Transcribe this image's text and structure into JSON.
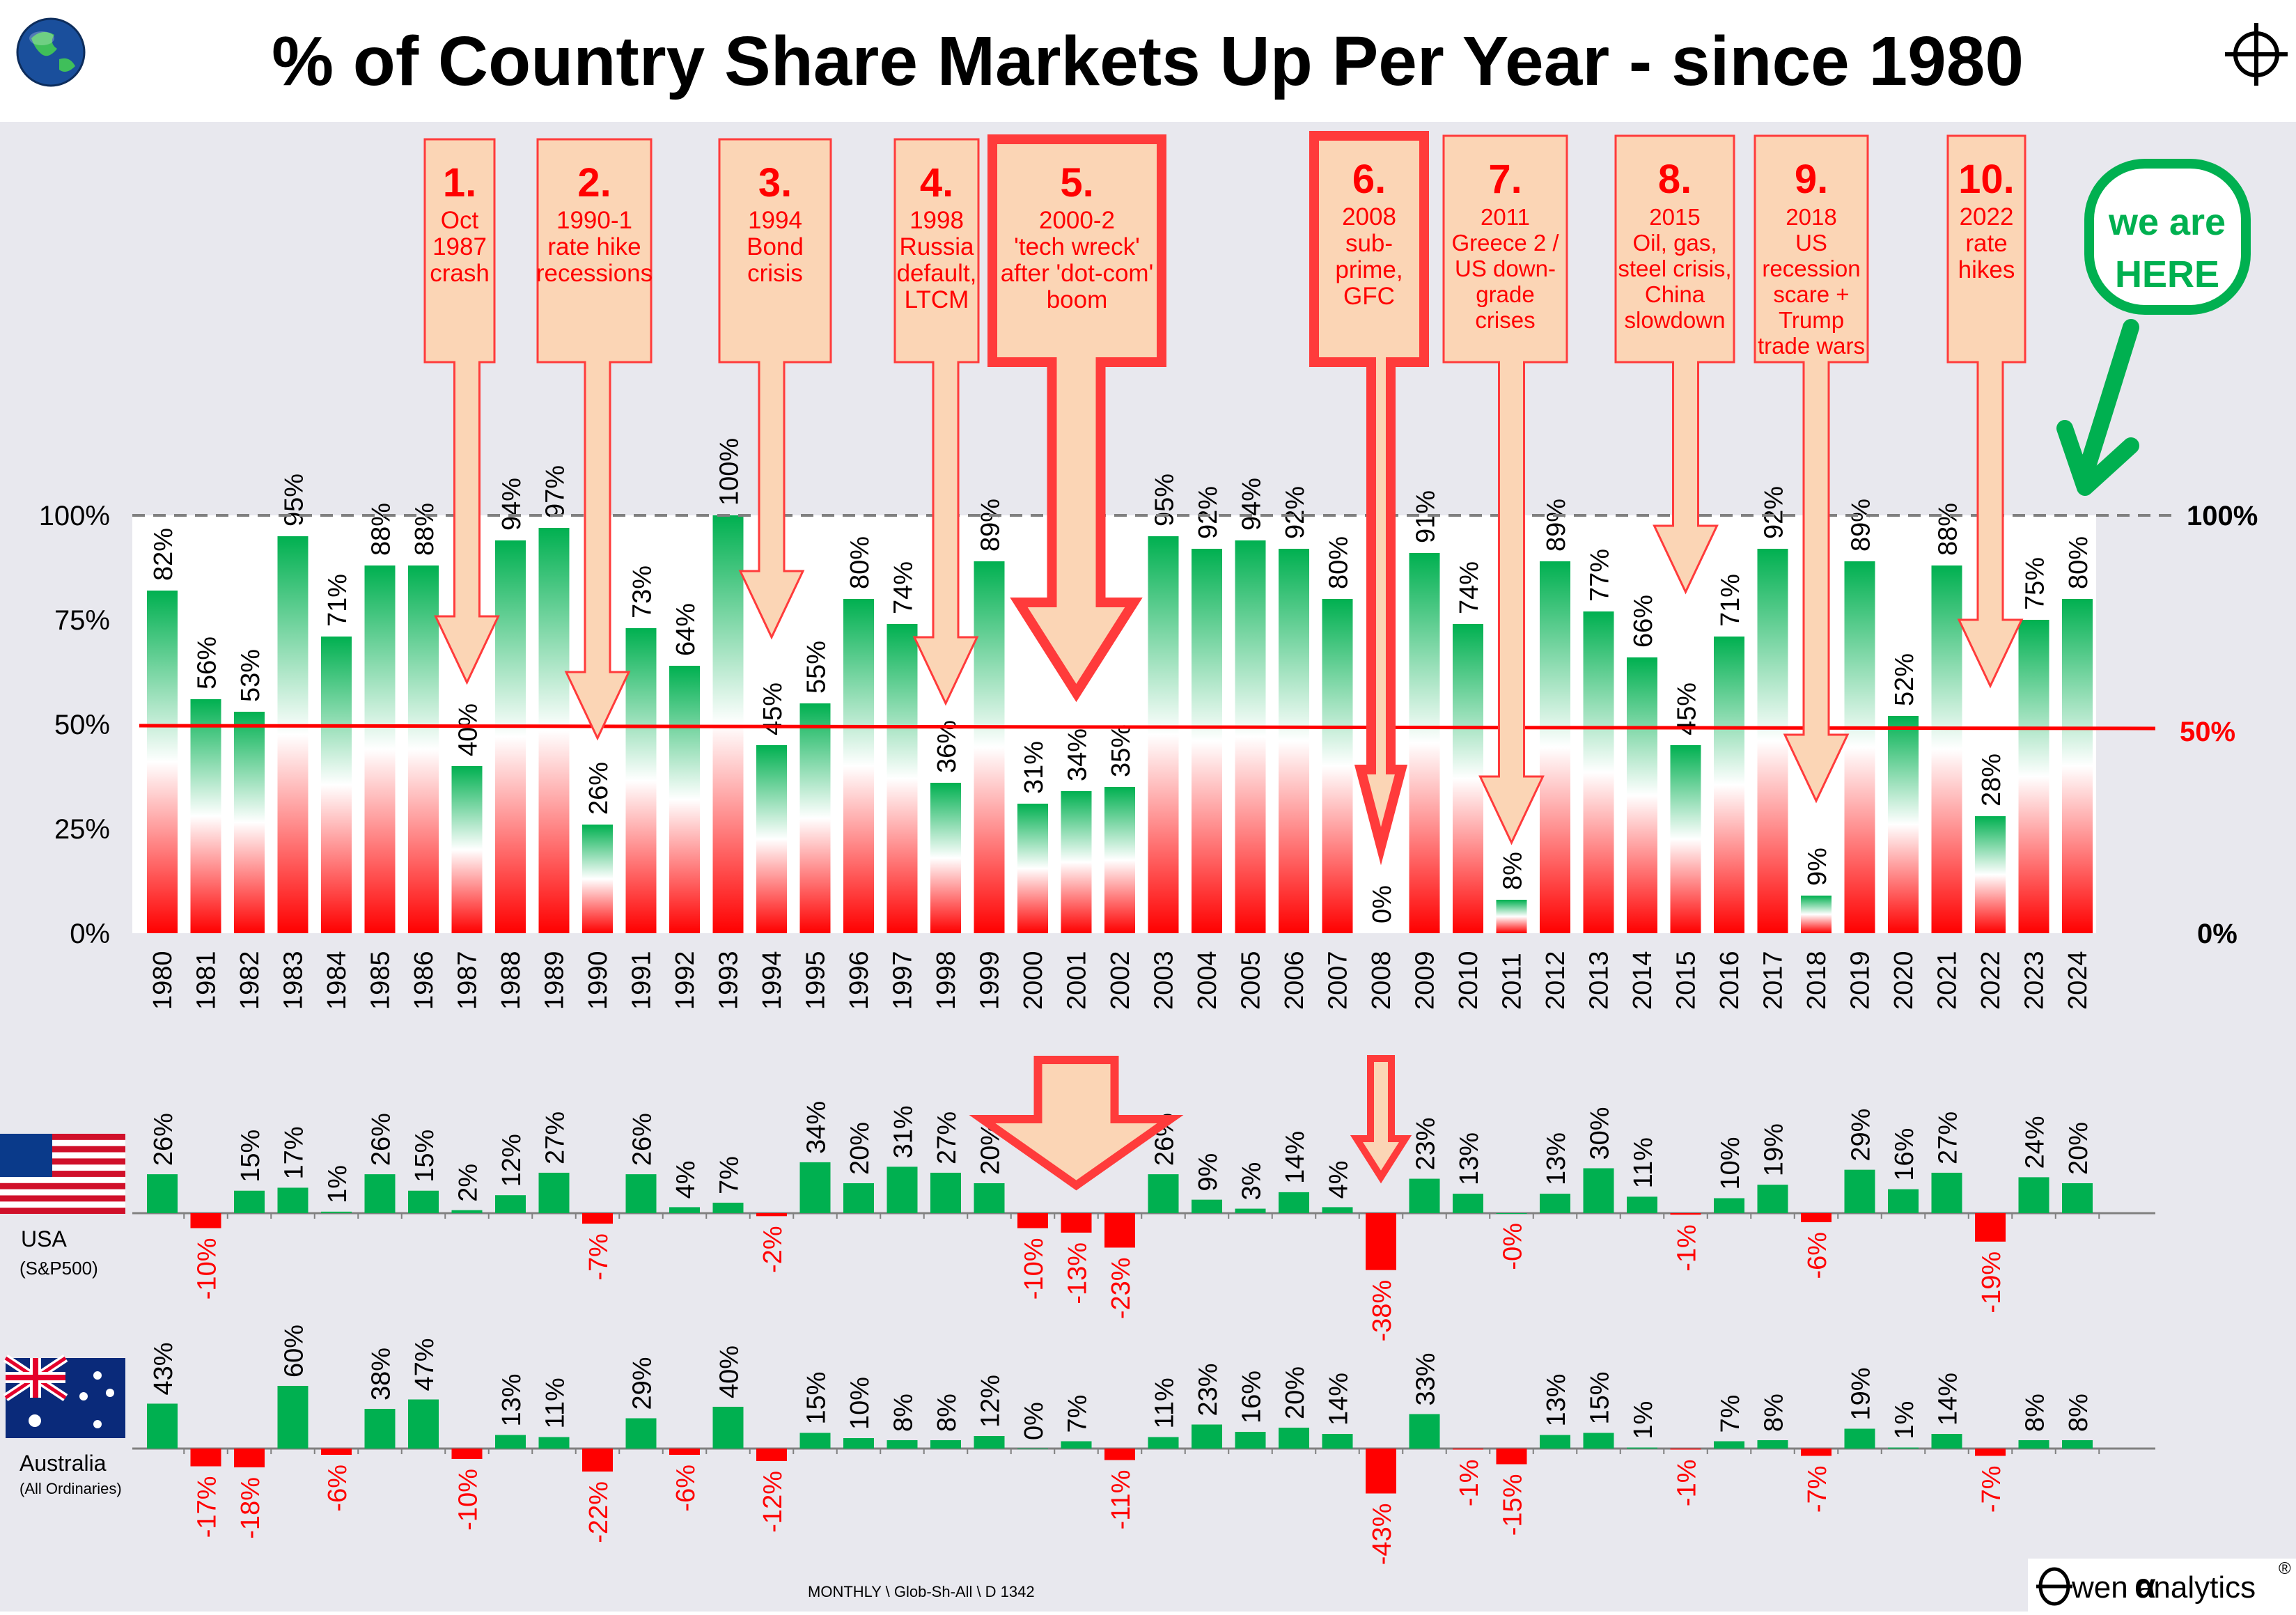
{
  "header": {
    "title": "% of Country Share Markets Up Per Year - since 1980",
    "globe_icon": "globe-icon",
    "crosshair_icon": "crosshair-icon"
  },
  "colors": {
    "background": "#e8e8ee",
    "plot_bg": "#ffffff",
    "green": "#00b050",
    "red": "#ff0000",
    "callout_fill": "#fbd5b5",
    "callout_stroke": "#ff3b3b",
    "here_green": "#00b050"
  },
  "chart_data": [
    {
      "type": "bar",
      "name": "main",
      "categories": [
        "1980",
        "1981",
        "1982",
        "1983",
        "1984",
        "1985",
        "1986",
        "1987",
        "1988",
        "1989",
        "1990",
        "1991",
        "1992",
        "1993",
        "1994",
        "1995",
        "1996",
        "1997",
        "1998",
        "1999",
        "2000",
        "2001",
        "2002",
        "2003",
        "2004",
        "2005",
        "2006",
        "2007",
        "2008",
        "2009",
        "2010",
        "2011",
        "2012",
        "2013",
        "2014",
        "2015",
        "2016",
        "2017",
        "2018",
        "2019",
        "2020",
        "2021",
        "2022",
        "2023",
        "2024"
      ],
      "values": [
        82,
        56,
        53,
        95,
        71,
        88,
        88,
        40,
        94,
        97,
        26,
        73,
        64,
        100,
        45,
        55,
        80,
        74,
        36,
        89,
        31,
        34,
        35,
        95,
        92,
        94,
        92,
        80,
        0,
        91,
        74,
        8,
        89,
        77,
        66,
        45,
        71,
        92,
        9,
        89,
        52,
        88,
        28,
        75,
        80
      ],
      "value_labels": [
        "82%",
        "56%",
        "53%",
        "95%",
        "71%",
        "88%",
        "88%",
        "40%",
        "94%",
        "97%",
        "26%",
        "73%",
        "64%",
        "100%",
        "45%",
        "55%",
        "80%",
        "74%",
        "36%",
        "89%",
        "31%",
        "34%",
        "35%",
        "95%",
        "92%",
        "94%",
        "92%",
        "80%",
        "0%",
        "91%",
        "74%",
        "8%",
        "89%",
        "77%",
        "66%",
        "45%",
        "71%",
        "92%",
        "9%",
        "89%",
        "52%",
        "88%",
        "28%",
        "75%",
        "80%"
      ],
      "ylim": [
        0,
        100
      ],
      "yticks": [
        "0%",
        "25%",
        "50%",
        "75%",
        "100%"
      ],
      "ref_lines": [
        {
          "value": 100,
          "label": "100%",
          "style": "dashed-grey"
        },
        {
          "value": 50,
          "label": "50%",
          "style": "solid-red"
        },
        {
          "value": 0,
          "label": "0%",
          "style": "axis"
        }
      ]
    },
    {
      "type": "bar",
      "name": "USA",
      "label": "USA",
      "sublabel": "(S&P500)",
      "flag": "usa-flag",
      "categories": [
        "1980",
        "1981",
        "1982",
        "1983",
        "1984",
        "1985",
        "1986",
        "1987",
        "1988",
        "1989",
        "1990",
        "1991",
        "1992",
        "1993",
        "1994",
        "1995",
        "1996",
        "1997",
        "1998",
        "1999",
        "2000",
        "2001",
        "2002",
        "2003",
        "2004",
        "2005",
        "2006",
        "2007",
        "2008",
        "2009",
        "2010",
        "2011",
        "2012",
        "2013",
        "2014",
        "2015",
        "2016",
        "2017",
        "2018",
        "2019",
        "2020",
        "2021",
        "2022",
        "2023",
        "2024"
      ],
      "values": [
        26,
        -10,
        15,
        17,
        1,
        26,
        15,
        2,
        12,
        27,
        -7,
        26,
        4,
        7,
        -2,
        34,
        20,
        31,
        27,
        20,
        -10,
        -13,
        -23,
        26,
        9,
        3,
        14,
        4,
        -38,
        23,
        13,
        0,
        13,
        30,
        11,
        -1,
        10,
        19,
        -6,
        29,
        16,
        27,
        -19,
        24,
        20
      ],
      "value_labels": [
        "26%",
        "-10%",
        "15%",
        "17%",
        "1%",
        "26%",
        "15%",
        "2%",
        "12%",
        "27%",
        "-7%",
        "26%",
        "4%",
        "7%",
        "-2%",
        "34%",
        "20%",
        "31%",
        "27%",
        "20%",
        "-10%",
        "-13%",
        "-23%",
        "26%",
        "9%",
        "3%",
        "14%",
        "4%",
        "-38%",
        "23%",
        "13%",
        "-0%",
        "13%",
        "30%",
        "11%",
        "-1%",
        "10%",
        "19%",
        "-6%",
        "29%",
        "16%",
        "27%",
        "-19%",
        "24%",
        "20%"
      ]
    },
    {
      "type": "bar",
      "name": "Australia",
      "label": "Australia",
      "sublabel": "(All Ordinaries)",
      "flag": "australia-flag",
      "categories": [
        "1980",
        "1981",
        "1982",
        "1983",
        "1984",
        "1985",
        "1986",
        "1987",
        "1988",
        "1989",
        "1990",
        "1991",
        "1992",
        "1993",
        "1994",
        "1995",
        "1996",
        "1997",
        "1998",
        "1999",
        "2000",
        "2001",
        "2002",
        "2003",
        "2004",
        "2005",
        "2006",
        "2007",
        "2008",
        "2009",
        "2010",
        "2011",
        "2012",
        "2013",
        "2014",
        "2015",
        "2016",
        "2017",
        "2018",
        "2019",
        "2020",
        "2021",
        "2022",
        "2023",
        "2024"
      ],
      "values": [
        43,
        -17,
        -18,
        60,
        -6,
        38,
        47,
        -10,
        13,
        11,
        -22,
        29,
        -6,
        40,
        -12,
        15,
        10,
        8,
        8,
        12,
        0,
        7,
        -11,
        11,
        23,
        16,
        20,
        14,
        -43,
        33,
        -1,
        -15,
        13,
        15,
        1,
        -1,
        7,
        8,
        -7,
        19,
        1,
        14,
        -7,
        8,
        8
      ],
      "value_labels": [
        "43%",
        "-17%",
        "-18%",
        "60%",
        "-6%",
        "38%",
        "47%",
        "-10%",
        "13%",
        "11%",
        "-22%",
        "29%",
        "-6%",
        "40%",
        "-12%",
        "15%",
        "10%",
        "8%",
        "8%",
        "12%",
        "0%",
        "7%",
        "-11%",
        "11%",
        "23%",
        "16%",
        "20%",
        "14%",
        "-43%",
        "33%",
        "-1%",
        "-15%",
        "13%",
        "15%",
        "1%",
        "-1%",
        "7%",
        "8%",
        "-7%",
        "19%",
        "1%",
        "14%",
        "-7%",
        "8%",
        "8%"
      ]
    }
  ],
  "callouts": [
    {
      "number": "1.",
      "lines": [
        "Oct",
        "1987",
        "crash"
      ],
      "year": "1987",
      "emphasis": false
    },
    {
      "number": "2.",
      "lines": [
        "1990-1",
        "rate hike",
        "recessions"
      ],
      "year": "1990",
      "emphasis": false
    },
    {
      "number": "3.",
      "lines": [
        "1994",
        "Bond",
        "crisis"
      ],
      "year": "1994",
      "emphasis": false
    },
    {
      "number": "4.",
      "lines": [
        "1998",
        "Russia",
        "default,",
        "LTCM"
      ],
      "year": "1998",
      "emphasis": false
    },
    {
      "number": "5.",
      "lines": [
        "2000-2",
        "'tech wreck'",
        "after 'dot-com'",
        "boom"
      ],
      "year": "2001",
      "emphasis": true
    },
    {
      "number": "6.",
      "lines": [
        "2008",
        "sub-",
        "prime,",
        "GFC"
      ],
      "year": "2008",
      "emphasis": true
    },
    {
      "number": "7.",
      "lines": [
        "2011",
        "Greece 2 /",
        "US down-",
        "grade",
        "crises"
      ],
      "year": "2011",
      "emphasis": false
    },
    {
      "number": "8.",
      "lines": [
        "2015",
        "Oil, gas,",
        "steel crisis,",
        "China",
        "slowdown"
      ],
      "year": "2015",
      "emphasis": false
    },
    {
      "number": "9.",
      "lines": [
        "2018",
        "US",
        "recession",
        "scare +",
        "Trump",
        "trade wars"
      ],
      "year": "2018",
      "emphasis": false
    },
    {
      "number": "10.",
      "lines": [
        "2022",
        "rate",
        "hikes"
      ],
      "year": "2022",
      "emphasis": false
    }
  ],
  "here_bubble": {
    "line1": "we are",
    "line2": "HERE"
  },
  "footer": {
    "source_note": "MONTHLY \\ Glob-Sh-All \\ D 1342",
    "logo_text": "wen analytics",
    "logo_alpha": "α",
    "logo_reg": "®",
    "logo_icon": "owen-logo-icon"
  }
}
